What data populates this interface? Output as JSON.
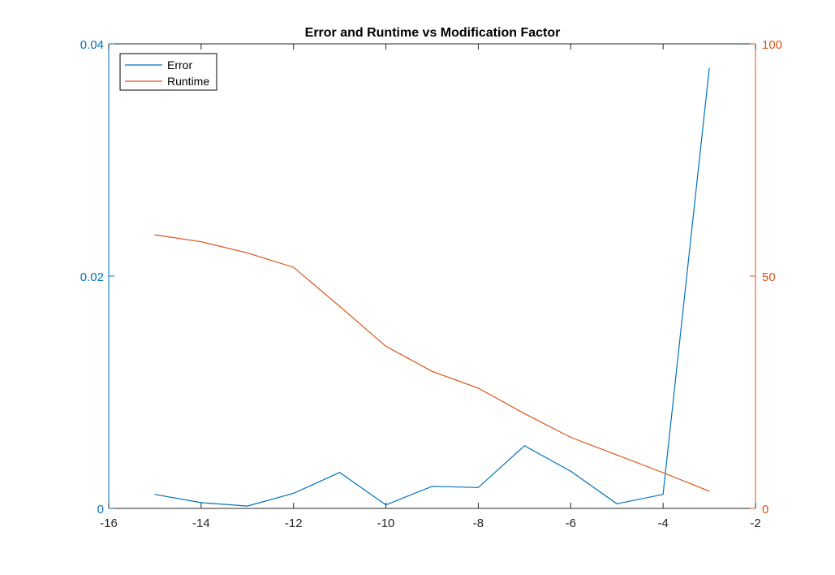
{
  "colors": {
    "error": "#0072BD",
    "runtime": "#D95319",
    "axis": "#262626",
    "background": "#FFFFFF"
  },
  "chart_data": {
    "type": "line",
    "title": "Error and Runtime vs Modification Factor",
    "xlabel": "",
    "grid": false,
    "legend": {
      "position": "top-left",
      "entries": [
        "Error",
        "Runtime"
      ]
    },
    "x": [
      -15,
      -14,
      -13,
      -12,
      -11,
      -10,
      -9,
      -8,
      -7,
      -6,
      -5,
      -4,
      -3
    ],
    "xlim": [
      -16,
      -2
    ],
    "xticks": [
      -16,
      -14,
      -12,
      -10,
      -8,
      -6,
      -4,
      -2
    ],
    "xtick_labels": [
      "-16",
      "-14",
      "-12",
      "-10",
      "-8",
      "-6",
      "-4",
      "-2"
    ],
    "y_left": {
      "label": "",
      "lim": [
        0,
        0.04
      ],
      "ticks": [
        0,
        0.02,
        0.04
      ],
      "tick_labels": [
        "0",
        "0.02",
        "0.04"
      ]
    },
    "y_right": {
      "label": "",
      "lim": [
        0,
        100
      ],
      "ticks": [
        0,
        50,
        100
      ],
      "tick_labels": [
        "0",
        "50",
        "100"
      ]
    },
    "series": [
      {
        "name": "Error",
        "axis": "left",
        "values": [
          0.0012,
          0.0005,
          0.0002,
          0.0013,
          0.0031,
          0.0003,
          0.0019,
          0.0018,
          0.0054,
          0.0032,
          0.0004,
          0.0012,
          0.0379
        ]
      },
      {
        "name": "Runtime",
        "axis": "right",
        "values": [
          58.9,
          57.4,
          55.0,
          51.9,
          43.5,
          34.9,
          29.5,
          25.9,
          20.4,
          15.3,
          11.5,
          7.7,
          3.7
        ]
      }
    ]
  }
}
